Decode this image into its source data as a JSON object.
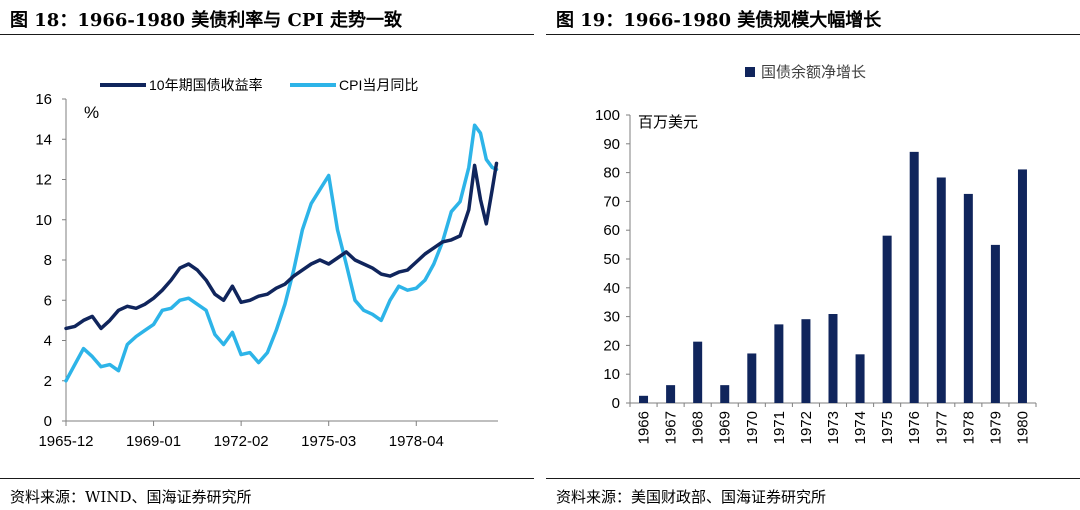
{
  "left": {
    "title": "图 18：1966-1980 美债利率与 CPI 走势一致",
    "source": "资料来源：WIND、国海证券研究所"
  },
  "right": {
    "title": "图 19：1966-1980 美债规模大幅增长",
    "source": "资料来源：美国财政部、国海证券研究所"
  },
  "colors": {
    "navy": "#10255c",
    "cyan": "#2db4e8",
    "axis": "#7f7f7f"
  },
  "chart_data": [
    {
      "type": "line",
      "title": "1966-1980 美债利率与 CPI 走势一致",
      "ylabel": "%",
      "ylim": [
        0,
        16
      ],
      "yticks": [
        0,
        2,
        4,
        6,
        8,
        10,
        12,
        14,
        16
      ],
      "xlim": [
        1966.0,
        1980.8
      ],
      "xtick_labels": [
        {
          "label": "1965-12",
          "t": 1966.0
        },
        {
          "label": "1969-01",
          "t": 1969.0
        },
        {
          "label": "1972-02",
          "t": 1972.0
        },
        {
          "label": "1975-03",
          "t": 1975.0
        },
        {
          "label": "1978-04",
          "t": 1978.0
        }
      ],
      "series": [
        {
          "name": "10年期国债收益率",
          "color": "#10255c",
          "t": [
            1966.0,
            1966.3,
            1966.6,
            1966.9,
            1967.2,
            1967.5,
            1967.8,
            1968.1,
            1968.4,
            1968.7,
            1969.0,
            1969.3,
            1969.6,
            1969.9,
            1970.2,
            1970.5,
            1970.8,
            1971.1,
            1971.4,
            1971.7,
            1972.0,
            1972.3,
            1972.6,
            1972.9,
            1973.2,
            1973.5,
            1973.8,
            1974.1,
            1974.4,
            1974.7,
            1975.0,
            1975.3,
            1975.6,
            1975.9,
            1976.2,
            1976.5,
            1976.8,
            1977.1,
            1977.4,
            1977.7,
            1978.0,
            1978.3,
            1978.6,
            1978.9,
            1979.2,
            1979.5,
            1979.8,
            1980.0,
            1980.2,
            1980.4,
            1980.6,
            1980.75
          ],
          "values": [
            4.6,
            4.7,
            5.0,
            5.2,
            4.6,
            5.0,
            5.5,
            5.7,
            5.6,
            5.8,
            6.1,
            6.5,
            7.0,
            7.6,
            7.8,
            7.5,
            7.0,
            6.3,
            6.0,
            6.7,
            5.9,
            6.0,
            6.2,
            6.3,
            6.6,
            6.8,
            7.2,
            7.5,
            7.8,
            8.0,
            7.8,
            8.1,
            8.4,
            8.0,
            7.8,
            7.6,
            7.3,
            7.2,
            7.4,
            7.5,
            7.9,
            8.3,
            8.6,
            8.9,
            9.0,
            9.2,
            10.5,
            12.7,
            11.0,
            9.8,
            11.5,
            12.8
          ]
        },
        {
          "name": "CPI当月同比",
          "color": "#2db4e8",
          "t": [
            1966.0,
            1966.3,
            1966.6,
            1966.9,
            1967.2,
            1967.5,
            1967.8,
            1968.1,
            1968.4,
            1968.7,
            1969.0,
            1969.3,
            1969.6,
            1969.9,
            1970.2,
            1970.5,
            1970.8,
            1971.1,
            1971.4,
            1971.7,
            1972.0,
            1972.3,
            1972.6,
            1972.9,
            1973.2,
            1973.5,
            1973.8,
            1974.1,
            1974.4,
            1974.7,
            1975.0,
            1975.3,
            1975.6,
            1975.9,
            1976.2,
            1976.5,
            1976.8,
            1977.1,
            1977.4,
            1977.7,
            1978.0,
            1978.3,
            1978.6,
            1978.9,
            1979.2,
            1979.5,
            1979.8,
            1980.0,
            1980.2,
            1980.4,
            1980.6,
            1980.75
          ],
          "values": [
            2.0,
            2.8,
            3.6,
            3.2,
            2.7,
            2.8,
            2.5,
            3.8,
            4.2,
            4.5,
            4.8,
            5.5,
            5.6,
            6.0,
            6.1,
            5.8,
            5.5,
            4.3,
            3.8,
            4.4,
            3.3,
            3.4,
            2.9,
            3.4,
            4.5,
            5.8,
            7.5,
            9.5,
            10.8,
            11.5,
            12.2,
            9.5,
            7.8,
            6.0,
            5.5,
            5.3,
            5.0,
            6.0,
            6.7,
            6.5,
            6.6,
            7.0,
            7.8,
            8.9,
            10.4,
            10.9,
            12.6,
            14.7,
            14.3,
            13.0,
            12.6,
            12.5
          ]
        }
      ]
    },
    {
      "type": "bar",
      "title": "1966-1980 美债规模大幅增长",
      "legend": "国债余额净增长",
      "ylabel": "百万美元",
      "ylim": [
        0,
        100
      ],
      "yticks": [
        0,
        10,
        20,
        30,
        40,
        50,
        60,
        70,
        80,
        90,
        100
      ],
      "categories": [
        "1966",
        "1967",
        "1968",
        "1969",
        "1970",
        "1971",
        "1972",
        "1973",
        "1974",
        "1975",
        "1976",
        "1977",
        "1978",
        "1979",
        "1980"
      ],
      "values": [
        2.5,
        6.2,
        21.3,
        6.2,
        17.2,
        27.3,
        29.1,
        30.9,
        16.9,
        58.1,
        87.2,
        78.3,
        72.6,
        54.9,
        81.1
      ]
    }
  ]
}
